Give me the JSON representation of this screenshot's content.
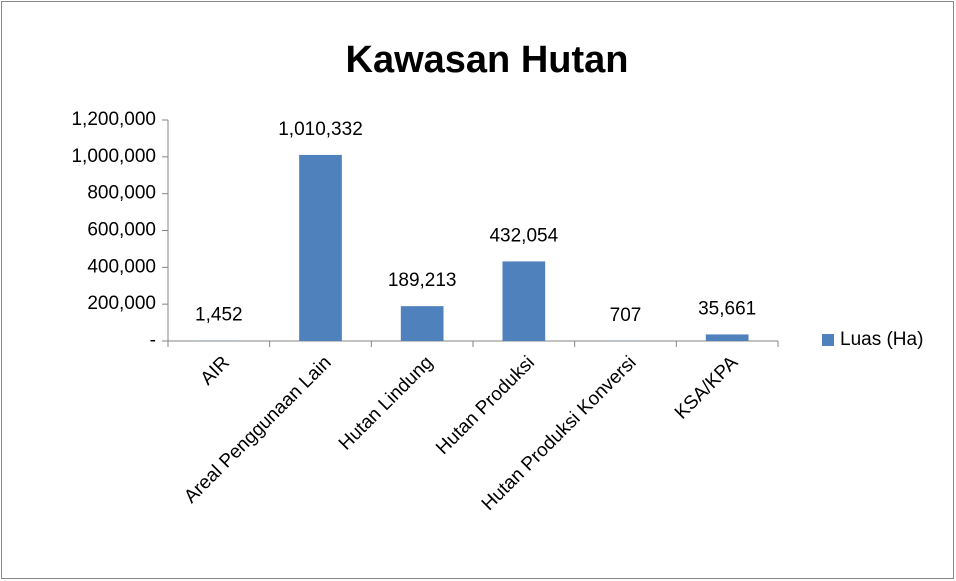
{
  "chart_data": {
    "type": "bar",
    "title": "Kawasan Hutan",
    "categories": [
      "AIR",
      "Areal Penggunaan Lain",
      "Hutan Lindung",
      "Hutan Produksi",
      "Hutan Produksi Konversi",
      "KSA/KPA"
    ],
    "series": [
      {
        "name": "Luas (Ha)",
        "color": "#4f81bd",
        "values": [
          1452,
          1010332,
          189213,
          432054,
          707,
          35661
        ],
        "value_labels": [
          "1,452",
          "1,010,332",
          "189,213",
          "432,054",
          "707",
          "35,661"
        ]
      }
    ],
    "ylim": [
      0,
      1200000
    ],
    "yticks": [
      {
        "value": 0,
        "label": "-"
      },
      {
        "value": 200000,
        "label": "200,000"
      },
      {
        "value": 400000,
        "label": "400,000"
      },
      {
        "value": 600000,
        "label": "600,000"
      },
      {
        "value": 800000,
        "label": "800,000"
      },
      {
        "value": 1000000,
        "label": "1,000,000"
      },
      {
        "value": 1200000,
        "label": "1,200,000"
      }
    ],
    "grid": false,
    "legend": "right"
  }
}
